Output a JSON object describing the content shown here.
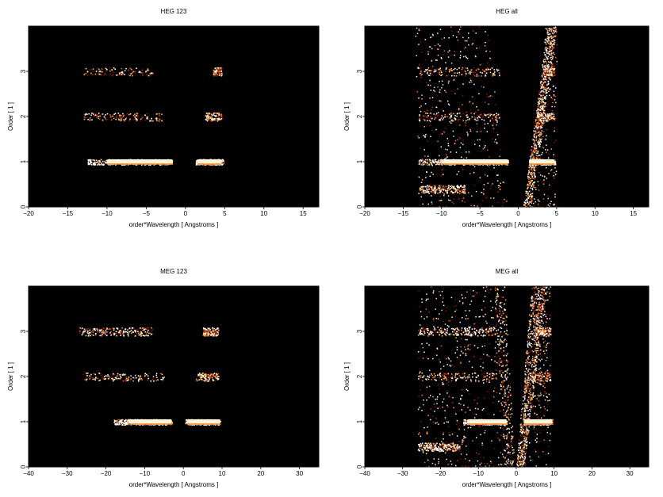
{
  "chart_data": [
    {
      "type": "heatmap",
      "title": "HEG 123",
      "xlabel": "order*Wavelength [ Angstroms ]",
      "ylabel": "Order [ 1 ]",
      "xlim": [
        -20,
        17
      ],
      "ylim": [
        0,
        4
      ],
      "xticks": [
        -20,
        -15,
        -10,
        -5,
        0,
        5,
        10,
        15
      ],
      "yticks": [
        0,
        1,
        2,
        3
      ],
      "xtick_labels": [
        "−20",
        "−15",
        "−10",
        "−5",
        "0",
        "5",
        "10",
        "15"
      ],
      "ytick_labels": [
        "0",
        "1",
        "2",
        "3"
      ],
      "background": "#000000",
      "bands": [
        {
          "order": 1,
          "x": [
            -12.5,
            -1.6
          ],
          "bright": [
            -10,
            -1.6
          ],
          "intensity": 1.0
        },
        {
          "order": 1,
          "x": [
            1.3,
            4.8
          ],
          "bright": [
            1.5,
            4.6
          ],
          "intensity": 1.0
        },
        {
          "order": 2,
          "x": [
            -13,
            -3
          ],
          "intensity": 0.35
        },
        {
          "order": 2,
          "x": [
            2.5,
            4.6
          ],
          "intensity": 0.3
        },
        {
          "order": 3,
          "x": [
            -13,
            -4
          ],
          "intensity": 0.25
        },
        {
          "order": 3,
          "x": [
            3.5,
            4.6
          ],
          "intensity": 0.2
        }
      ],
      "wedges": []
    },
    {
      "type": "heatmap",
      "title": "HEG all",
      "xlabel": "order*Wavelength [ Angstroms ]",
      "ylabel": "Order [ 1 ]",
      "xlim": [
        -20,
        17
      ],
      "ylim": [
        0,
        4
      ],
      "xticks": [
        -20,
        -15,
        -10,
        -5,
        0,
        5,
        10,
        15
      ],
      "yticks": [
        0,
        1,
        2,
        3
      ],
      "xtick_labels": [
        "−20",
        "−15",
        "−10",
        "−5",
        "0",
        "5",
        "10",
        "15"
      ],
      "ytick_labels": [
        "0",
        "1",
        "2",
        "3"
      ],
      "background": "#000000",
      "bands": [
        {
          "order": 1,
          "x": [
            -13,
            -1.3
          ],
          "bright": [
            -10,
            -1.3
          ],
          "intensity": 1.0
        },
        {
          "order": 1,
          "x": [
            1.4,
            4.8
          ],
          "bright": [
            1.4,
            4.7
          ],
          "intensity": 1.0
        },
        {
          "order": 2,
          "x": [
            -13,
            -2.5
          ],
          "intensity": 0.35
        },
        {
          "order": 2,
          "x": [
            2.5,
            4.7
          ],
          "intensity": 0.3
        },
        {
          "order": 3,
          "x": [
            -13,
            -2.5
          ],
          "intensity": 0.3
        },
        {
          "order": 3,
          "x": [
            3.3,
            4.7
          ],
          "intensity": 0.25
        },
        {
          "order": 0.4,
          "x": [
            -13,
            -7
          ],
          "intensity": 0.6
        }
      ],
      "wedges": [
        {
          "x_bottom": [
            -13,
            -1.5
          ],
          "x_top": [
            -13.5,
            -4
          ],
          "density": 0.5
        },
        {
          "x_bottom": [
            0.6,
            1.6
          ],
          "x_top": [
            3.8,
            5
          ],
          "density": 0.9
        },
        {
          "x_bottom": [
            1.3,
            5
          ],
          "x_top": [
            3.5,
            5
          ],
          "density": 0.25
        }
      ]
    },
    {
      "type": "heatmap",
      "title": "MEG 123",
      "xlabel": "order*Wavelength [ Angstroms ]",
      "ylabel": "Order [ 1 ]",
      "xlim": [
        -40,
        35
      ],
      "ylim": [
        0,
        4
      ],
      "xticks": [
        -40,
        -30,
        -20,
        -10,
        0,
        10,
        20,
        30
      ],
      "yticks": [
        0,
        1,
        2,
        3
      ],
      "xtick_labels": [
        "−40",
        "−30",
        "−20",
        "−10",
        "0",
        "10",
        "20",
        "30"
      ],
      "ytick_labels": [
        "0",
        "1",
        "2",
        "3"
      ],
      "background": "#000000",
      "bands": [
        {
          "order": 1,
          "x": [
            -18,
            -3
          ],
          "bright": [
            -14,
            -3
          ],
          "intensity": 1.0
        },
        {
          "order": 1,
          "x": [
            0.5,
            9.5
          ],
          "bright": [
            1,
            9.5
          ],
          "intensity": 0.9
        },
        {
          "order": 2,
          "x": [
            -26,
            -5
          ],
          "intensity": 0.35
        },
        {
          "order": 2,
          "x": [
            3,
            9
          ],
          "intensity": 0.3
        },
        {
          "order": 3,
          "x": [
            -27,
            -8
          ],
          "intensity": 0.55
        },
        {
          "order": 3,
          "x": [
            5,
            9
          ],
          "intensity": 0.4
        }
      ],
      "wedges": []
    },
    {
      "type": "heatmap",
      "title": "MEG all",
      "xlabel": "order*Wavelength [ Angstroms ]",
      "ylabel": "Order [ 1 ]",
      "xlim": [
        -40,
        35
      ],
      "ylim": [
        0,
        4
      ],
      "xticks": [
        -40,
        -30,
        -20,
        -10,
        0,
        10,
        20,
        30
      ],
      "yticks": [
        0,
        1,
        2,
        3
      ],
      "xtick_labels": [
        "−40",
        "−30",
        "−20",
        "−10",
        "0",
        "10",
        "20",
        "30"
      ],
      "ytick_labels": [
        "0",
        "1",
        "2",
        "3"
      ],
      "background": "#000000",
      "bands": [
        {
          "order": 1,
          "x": [
            -14,
            -2.5
          ],
          "bright": [
            -13,
            -2.5
          ],
          "intensity": 1.0
        },
        {
          "order": 1,
          "x": [
            2,
            9.5
          ],
          "bright": [
            2,
            9.5
          ],
          "intensity": 0.9
        },
        {
          "order": 2,
          "x": [
            -26,
            -5
          ],
          "intensity": 0.35
        },
        {
          "order": 2,
          "x": [
            4,
            9
          ],
          "intensity": 0.3
        },
        {
          "order": 3,
          "x": [
            -26,
            -5
          ],
          "intensity": 0.55
        },
        {
          "order": 3,
          "x": [
            5,
            9
          ],
          "intensity": 0.4
        },
        {
          "order": 0.45,
          "x": [
            -26,
            -15
          ],
          "intensity": 0.6
        }
      ],
      "wedges": [
        {
          "x_bottom": [
            -26,
            -1.5
          ],
          "x_top": [
            -26,
            -5
          ],
          "density": 0.55
        },
        {
          "x_bottom": [
            0,
            2
          ],
          "x_top": [
            4,
            8
          ],
          "density": 0.9
        },
        {
          "x_bottom": [
            -3,
            -0.5
          ],
          "x_top": [
            -6,
            -3
          ],
          "density": 0.35
        },
        {
          "x_bottom": [
            2,
            9
          ],
          "x_top": [
            6,
            9
          ],
          "density": 0.25
        }
      ]
    }
  ]
}
